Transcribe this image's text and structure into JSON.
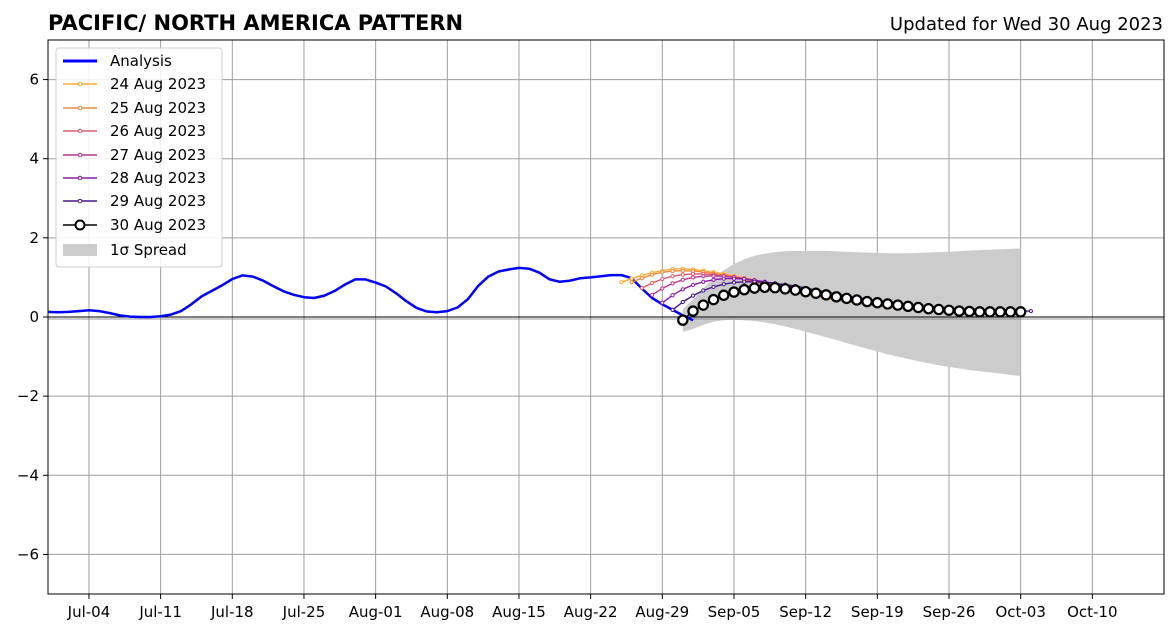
{
  "chart_data": {
    "type": "line",
    "title": "PACIFIC/ NORTH AMERICA PATTERN",
    "subtitle": "Updated for Wed 30 Aug 2023",
    "xlabel": "",
    "ylabel": "",
    "xlim": [
      "2023-06-30",
      "2023-10-17"
    ],
    "ylim": [
      -7,
      7
    ],
    "grid": true,
    "legend_position": "upper-left",
    "x_ticks": [
      {
        "date": "2023-07-04",
        "label": "Jul-04"
      },
      {
        "date": "2023-07-11",
        "label": "Jul-11"
      },
      {
        "date": "2023-07-18",
        "label": "Jul-18"
      },
      {
        "date": "2023-07-25",
        "label": "Jul-25"
      },
      {
        "date": "2023-08-01",
        "label": "Aug-01"
      },
      {
        "date": "2023-08-08",
        "label": "Aug-08"
      },
      {
        "date": "2023-08-15",
        "label": "Aug-15"
      },
      {
        "date": "2023-08-22",
        "label": "Aug-22"
      },
      {
        "date": "2023-08-29",
        "label": "Aug-29"
      },
      {
        "date": "2023-09-05",
        "label": "Sep-05"
      },
      {
        "date": "2023-09-12",
        "label": "Sep-12"
      },
      {
        "date": "2023-09-19",
        "label": "Sep-19"
      },
      {
        "date": "2023-09-26",
        "label": "Sep-26"
      },
      {
        "date": "2023-10-03",
        "label": "Oct-03"
      },
      {
        "date": "2023-10-10",
        "label": "Oct-10"
      }
    ],
    "y_ticks": [
      {
        "value": 6,
        "label": "6"
      },
      {
        "value": 4,
        "label": "4"
      },
      {
        "value": 2,
        "label": "2"
      },
      {
        "value": 0,
        "label": "0"
      },
      {
        "value": -2,
        "label": "−2"
      },
      {
        "value": -4,
        "label": "−4"
      },
      {
        "value": -6,
        "label": "−6"
      }
    ],
    "series": [
      {
        "name": "Analysis",
        "color": "#0000ff",
        "start": "2023-06-30",
        "values": [
          0.13,
          0.12,
          0.13,
          0.15,
          0.17,
          0.15,
          0.1,
          0.04,
          0.01,
          0.0,
          0.0,
          0.02,
          0.06,
          0.15,
          0.32,
          0.52,
          0.66,
          0.8,
          0.96,
          1.05,
          1.02,
          0.92,
          0.78,
          0.65,
          0.56,
          0.5,
          0.48,
          0.54,
          0.66,
          0.82,
          0.95,
          0.95,
          0.87,
          0.77,
          0.6,
          0.4,
          0.23,
          0.14,
          0.12,
          0.15,
          0.24,
          0.45,
          0.78,
          1.02,
          1.15,
          1.2,
          1.24,
          1.22,
          1.12,
          0.95,
          0.89,
          0.92,
          0.98,
          1.0,
          1.03,
          1.06,
          1.06,
          0.98,
          0.72,
          0.48,
          0.32,
          0.18,
          0.04,
          -0.08
        ]
      },
      {
        "name": "24 Aug 2023",
        "color": "#ffaa33",
        "start": "2023-08-25",
        "values": [
          0.88,
          0.97,
          1.05,
          1.12,
          1.17,
          1.21,
          1.22,
          1.2,
          1.17,
          1.13,
          1.09,
          1.04,
          0.99,
          0.94,
          0.88,
          0.82,
          0.76,
          0.69,
          0.62,
          0.56,
          0.5,
          0.45,
          0.4,
          0.36,
          0.32,
          0.29,
          0.26,
          0.24,
          0.22,
          0.2,
          0.18,
          0.17,
          0.16,
          0.15,
          0.14,
          0.14
        ]
      },
      {
        "name": "25 Aug 2023",
        "color": "#f08a3c",
        "start": "2023-08-26",
        "values": [
          0.88,
          0.98,
          1.07,
          1.13,
          1.16,
          1.17,
          1.16,
          1.14,
          1.1,
          1.06,
          1.01,
          0.95,
          0.89,
          0.83,
          0.77,
          0.71,
          0.65,
          0.59,
          0.53,
          0.48,
          0.43,
          0.39,
          0.35,
          0.31,
          0.28,
          0.26,
          0.24,
          0.22,
          0.2,
          0.19,
          0.18,
          0.17,
          0.16,
          0.15,
          0.15,
          0.14
        ]
      },
      {
        "name": "26 Aug 2023",
        "color": "#e05a6a",
        "start": "2023-08-27",
        "values": [
          0.73,
          0.86,
          0.96,
          1.03,
          1.07,
          1.09,
          1.09,
          1.07,
          1.04,
          1.0,
          0.95,
          0.9,
          0.85,
          0.79,
          0.73,
          0.67,
          0.61,
          0.56,
          0.51,
          0.46,
          0.42,
          0.38,
          0.35,
          0.32,
          0.29,
          0.27,
          0.25,
          0.23,
          0.21,
          0.2,
          0.19,
          0.18,
          0.17,
          0.16,
          0.15,
          0.15
        ]
      },
      {
        "name": "27 Aug 2023",
        "color": "#b83490",
        "start": "2023-08-28",
        "values": [
          0.56,
          0.72,
          0.85,
          0.94,
          1.0,
          1.03,
          1.04,
          1.03,
          1.01,
          0.97,
          0.93,
          0.88,
          0.83,
          0.78,
          0.72,
          0.66,
          0.61,
          0.56,
          0.51,
          0.46,
          0.42,
          0.38,
          0.35,
          0.32,
          0.29,
          0.27,
          0.25,
          0.23,
          0.21,
          0.2,
          0.19,
          0.18,
          0.17,
          0.16,
          0.15,
          0.15
        ]
      },
      {
        "name": "28 Aug 2023",
        "color": "#8a1aa8",
        "start": "2023-08-29",
        "values": [
          0.36,
          0.55,
          0.7,
          0.81,
          0.89,
          0.94,
          0.97,
          0.97,
          0.96,
          0.93,
          0.89,
          0.85,
          0.8,
          0.75,
          0.7,
          0.65,
          0.6,
          0.55,
          0.5,
          0.46,
          0.42,
          0.38,
          0.35,
          0.32,
          0.29,
          0.27,
          0.25,
          0.23,
          0.21,
          0.2,
          0.19,
          0.18,
          0.17,
          0.16,
          0.15,
          0.15
        ]
      },
      {
        "name": "29 Aug 2023",
        "color": "#4a148c",
        "start": "2023-08-30",
        "values": [
          0.18,
          0.38,
          0.54,
          0.67,
          0.76,
          0.83,
          0.87,
          0.89,
          0.89,
          0.88,
          0.85,
          0.82,
          0.78,
          0.73,
          0.68,
          0.63,
          0.58,
          0.53,
          0.49,
          0.45,
          0.41,
          0.37,
          0.34,
          0.31,
          0.28,
          0.26,
          0.24,
          0.22,
          0.21,
          0.2,
          0.19,
          0.18,
          0.17,
          0.16,
          0.15,
          0.15
        ]
      },
      {
        "name": "30 Aug 2023",
        "color": "#000000",
        "start": "2023-08-31",
        "values": [
          -0.08,
          0.15,
          0.3,
          0.44,
          0.55,
          0.63,
          0.69,
          0.73,
          0.75,
          0.74,
          0.71,
          0.68,
          0.64,
          0.6,
          0.56,
          0.51,
          0.47,
          0.43,
          0.39,
          0.36,
          0.33,
          0.3,
          0.27,
          0.24,
          0.21,
          0.19,
          0.17,
          0.15,
          0.14,
          0.13,
          0.13,
          0.13,
          0.13,
          0.13
        ]
      }
    ],
    "spread": {
      "name": "1σ Spread",
      "color": "#cccccc",
      "start": "2023-08-31",
      "upper": [
        0.2,
        0.45,
        0.72,
        0.98,
        1.18,
        1.34,
        1.46,
        1.55,
        1.6,
        1.64,
        1.66,
        1.67,
        1.67,
        1.67,
        1.67,
        1.66,
        1.65,
        1.64,
        1.63,
        1.62,
        1.61,
        1.61,
        1.61,
        1.62,
        1.63,
        1.64,
        1.65,
        1.66,
        1.68,
        1.69,
        1.7,
        1.71,
        1.72,
        1.73
      ],
      "lower": [
        -0.38,
        -0.3,
        -0.2,
        -0.12,
        -0.08,
        -0.07,
        -0.08,
        -0.1,
        -0.14,
        -0.18,
        -0.24,
        -0.3,
        -0.37,
        -0.44,
        -0.51,
        -0.58,
        -0.66,
        -0.73,
        -0.8,
        -0.87,
        -0.94,
        -1.0,
        -1.06,
        -1.12,
        -1.17,
        -1.22,
        -1.26,
        -1.3,
        -1.34,
        -1.37,
        -1.4,
        -1.43,
        -1.46,
        -1.49
      ]
    },
    "legend": [
      {
        "label": "Analysis",
        "kind": "thick-line",
        "color": "#0000ff"
      },
      {
        "label": "24 Aug 2023",
        "kind": "dot-line",
        "color": "#ffaa33"
      },
      {
        "label": "25 Aug 2023",
        "kind": "dot-line",
        "color": "#f08a3c"
      },
      {
        "label": "26 Aug 2023",
        "kind": "dot-line",
        "color": "#e05a6a"
      },
      {
        "label": "27 Aug 2023",
        "kind": "dot-line",
        "color": "#b83490"
      },
      {
        "label": "28 Aug 2023",
        "kind": "dot-line",
        "color": "#8a1aa8"
      },
      {
        "label": "29 Aug 2023",
        "kind": "dot-line",
        "color": "#4a148c"
      },
      {
        "label": "30 Aug 2023",
        "kind": "circle-line",
        "color": "#000000"
      },
      {
        "label": "1σ Spread",
        "kind": "patch",
        "color": "#cccccc"
      }
    ]
  }
}
